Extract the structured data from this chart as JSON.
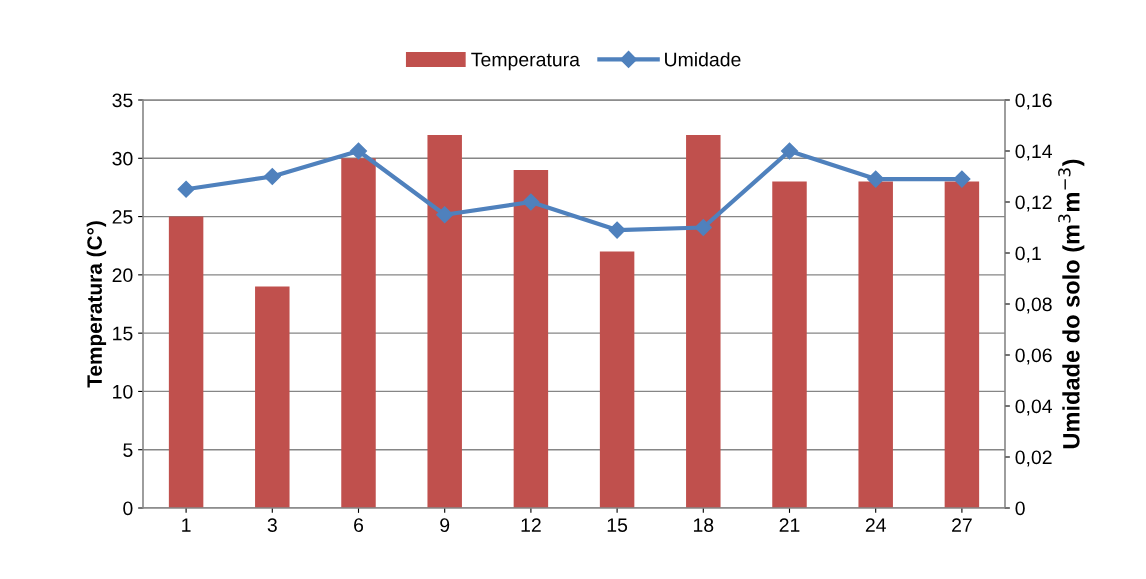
{
  "chart_data": {
    "type": "bar",
    "categories": [
      "1",
      "3",
      "6",
      "9",
      "12",
      "15",
      "18",
      "21",
      "24",
      "27"
    ],
    "series": [
      {
        "name": "Temperatura",
        "color": "#c0504d",
        "values": [
          25,
          19,
          30,
          32,
          29,
          22,
          32,
          28,
          28,
          28
        ]
      },
      {
        "name": "Umidade",
        "type": "line",
        "axis": "y2",
        "color": "#4f81bd",
        "marker": "diamond",
        "values": [
          0.125,
          0.13,
          0.14,
          0.115,
          0.12,
          0.109,
          0.11,
          0.14,
          0.129,
          0.129
        ]
      }
    ],
    "ylabel": "Temperatura (C°)",
    "y2label": "Umidade do solo (m$^{3}$m$^{−3}$)",
    "ylim": [
      0,
      35
    ],
    "yticks": [
      0,
      5,
      10,
      15,
      20,
      25,
      30,
      35
    ],
    "y2lim": [
      0,
      0.16
    ],
    "y2ticks": [
      {
        "value": 0,
        "label": "0"
      },
      {
        "value": 0.02,
        "label": "0,02"
      },
      {
        "value": 0.04,
        "label": "0,04"
      },
      {
        "value": 0.06,
        "label": "0,06"
      },
      {
        "value": 0.08,
        "label": "0,08"
      },
      {
        "value": 0.1,
        "label": "0,1"
      },
      {
        "value": 0.12,
        "label": "0,12"
      },
      {
        "value": 0.14,
        "label": "0,14"
      },
      {
        "value": 0.16,
        "label": "0,16"
      }
    ],
    "grid": "y",
    "legend": "top"
  }
}
